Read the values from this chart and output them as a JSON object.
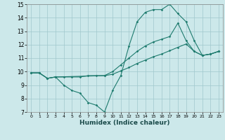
{
  "xlabel": "Humidex (Indice chaleur)",
  "bg_color": "#cce8ea",
  "line_color": "#1e7b6e",
  "grid_color": "#a0c8cc",
  "xlim": [
    -0.5,
    23.5
  ],
  "ylim": [
    7,
    15
  ],
  "xticks": [
    0,
    1,
    2,
    3,
    4,
    5,
    6,
    7,
    8,
    9,
    10,
    11,
    12,
    13,
    14,
    15,
    16,
    17,
    18,
    19,
    20,
    21,
    22,
    23
  ],
  "yticks": [
    7,
    8,
    9,
    10,
    11,
    12,
    13,
    14,
    15
  ],
  "lines": [
    {
      "x": [
        0,
        1,
        2,
        3,
        4,
        5,
        6,
        7,
        8,
        9,
        10,
        11,
        12,
        13,
        14,
        15,
        16,
        17,
        18,
        19,
        20,
        21,
        22,
        23
      ],
      "y": [
        9.9,
        9.9,
        9.5,
        9.6,
        9.0,
        8.6,
        8.4,
        7.7,
        7.5,
        7.0,
        8.6,
        9.7,
        11.9,
        13.7,
        14.4,
        14.6,
        14.6,
        15.0,
        14.3,
        13.7,
        12.3,
        11.2,
        11.3,
        11.5
      ]
    },
    {
      "x": [
        0,
        1,
        2,
        3,
        4,
        5,
        6,
        7,
        8,
        9,
        10,
        11,
        12,
        13,
        14,
        15,
        16,
        17,
        18,
        19,
        20,
        21,
        22,
        23
      ],
      "y": [
        9.9,
        9.9,
        9.5,
        9.6,
        9.6,
        9.6,
        9.6,
        9.7,
        9.7,
        9.7,
        9.8,
        10.05,
        10.3,
        10.6,
        10.85,
        11.1,
        11.3,
        11.55,
        11.8,
        12.05,
        11.5,
        11.2,
        11.3,
        11.5
      ]
    },
    {
      "x": [
        0,
        1,
        2,
        3,
        9,
        10,
        11,
        12,
        13,
        14,
        15,
        16,
        17,
        18,
        19,
        20,
        21,
        22,
        23
      ],
      "y": [
        9.9,
        9.9,
        9.5,
        9.6,
        9.7,
        10.0,
        10.5,
        11.0,
        11.5,
        11.9,
        12.2,
        12.4,
        12.6,
        13.6,
        12.3,
        11.5,
        11.2,
        11.3,
        11.5
      ]
    }
  ]
}
